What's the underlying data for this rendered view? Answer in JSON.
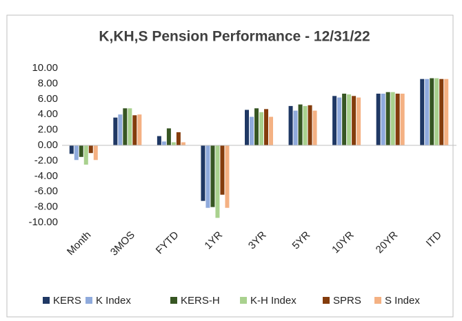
{
  "chart_data": {
    "type": "bar",
    "title": "K,KH,S Pension Performance - 12/31/22",
    "categories": [
      "Month",
      "3MOS",
      "FYTD",
      "1YR",
      "3YR",
      "5YR",
      "10YR",
      "20YR",
      "ITD"
    ],
    "series": [
      {
        "name": "KERS",
        "color": "#1f3864",
        "values": [
          -1.1,
          3.6,
          1.2,
          -7.2,
          4.6,
          5.1,
          6.4,
          6.7,
          8.6
        ]
      },
      {
        "name": "K Index",
        "color": "#8faadc",
        "values": [
          -1.9,
          4.0,
          0.5,
          -8.1,
          3.7,
          4.5,
          6.2,
          6.7,
          8.6
        ]
      },
      {
        "name": "KERS-H",
        "color": "#375623",
        "values": [
          -1.5,
          4.8,
          2.2,
          -8.0,
          4.8,
          5.3,
          6.7,
          6.9,
          8.7
        ]
      },
      {
        "name": "K-H Index",
        "color": "#a9d18e",
        "values": [
          -2.5,
          4.8,
          0.4,
          -9.4,
          4.3,
          5.1,
          6.6,
          6.9,
          8.7
        ]
      },
      {
        "name": "SPRS",
        "color": "#843c0c",
        "values": [
          -1.0,
          3.9,
          1.7,
          -6.4,
          4.7,
          5.2,
          6.4,
          6.7,
          8.6
        ]
      },
      {
        "name": "S Index",
        "color": "#f4b183",
        "values": [
          -1.9,
          4.0,
          0.4,
          -8.1,
          3.7,
          4.5,
          6.2,
          6.7,
          8.6
        ]
      }
    ],
    "ylim": [
      -10,
      10
    ],
    "yticks": [
      {
        "value": 10,
        "label": "10.00"
      },
      {
        "value": 8,
        "label": "8.00"
      },
      {
        "value": 6,
        "label": "6.00"
      },
      {
        "value": 4,
        "label": "4.00"
      },
      {
        "value": 2,
        "label": "2.00"
      },
      {
        "value": 0,
        "label": "0.00"
      },
      {
        "value": -2,
        "label": "-2.00"
      },
      {
        "value": -4,
        "label": "-4.00"
      },
      {
        "value": -6,
        "label": "-6.00"
      },
      {
        "value": -8,
        "label": "-8.00"
      },
      {
        "value": -10,
        "label": "-10.00"
      }
    ],
    "grid": false,
    "legend": "bottom"
  }
}
